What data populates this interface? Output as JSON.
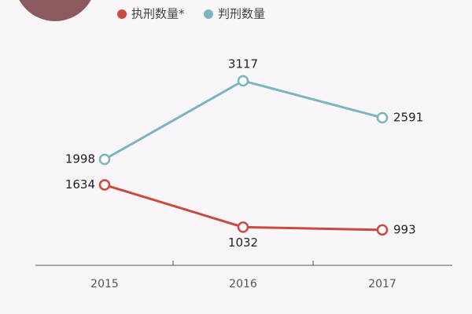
{
  "chart_data": {
    "type": "line",
    "categories": [
      "2015",
      "2016",
      "2017"
    ],
    "series": [
      {
        "name": "执刑数量*",
        "color": "#c94a41",
        "values": [
          1634,
          1032,
          993
        ]
      },
      {
        "name": "判刑数量",
        "color": "#7cb5bf",
        "values": [
          1998,
          3117,
          2591
        ]
      }
    ]
  }
}
